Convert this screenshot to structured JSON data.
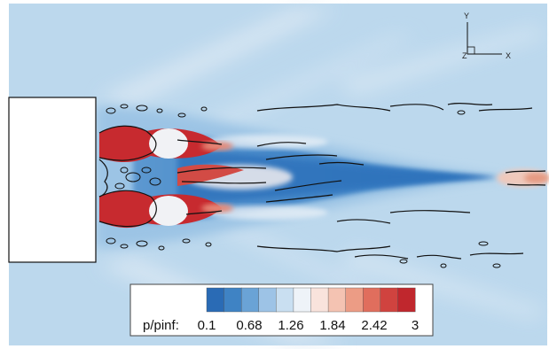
{
  "legend": {
    "variable": "p/pinf:",
    "ticks": [
      "0.1",
      "0.68",
      "1.26",
      "1.84",
      "2.42",
      "3"
    ],
    "colors": [
      "#2a6bb5",
      "#3f83c4",
      "#6aa3d6",
      "#9dc3e6",
      "#c9dff1",
      "#eef3f8",
      "#f9e3dc",
      "#f4c3b2",
      "#ec9c85",
      "#e06e5d",
      "#d0433f",
      "#c0272d"
    ]
  },
  "axes": {
    "y": "Y",
    "x": "X",
    "z": "Z"
  },
  "palette": {
    "background": "#b9d6ec",
    "freestream": "#c7dff1",
    "core_blue": "#3c82c7",
    "light_blue": "#8dbbe2",
    "whitish": "#f0f4f8",
    "red": "#c8262c",
    "wall": "#ffffff"
  }
}
